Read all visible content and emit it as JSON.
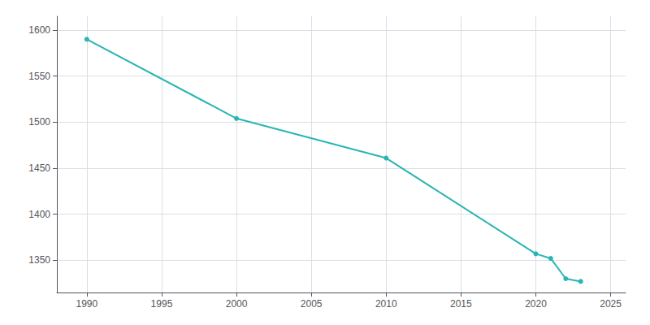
{
  "chart_data": {
    "type": "line",
    "x": [
      1990,
      2000,
      2010,
      2020,
      2021,
      2022,
      2023
    ],
    "values": [
      1590,
      1504,
      1461,
      1357,
      1352,
      1330,
      1327
    ],
    "color": "#2AB5B5",
    "marker": "circle",
    "xlim": [
      1988,
      2026
    ],
    "ylim": [
      1315,
      1615
    ],
    "xticks": [
      1990,
      1995,
      2000,
      2005,
      2010,
      2015,
      2020,
      2025
    ],
    "yticks": [
      1350,
      1400,
      1450,
      1500,
      1550,
      1600
    ],
    "grid": true
  }
}
